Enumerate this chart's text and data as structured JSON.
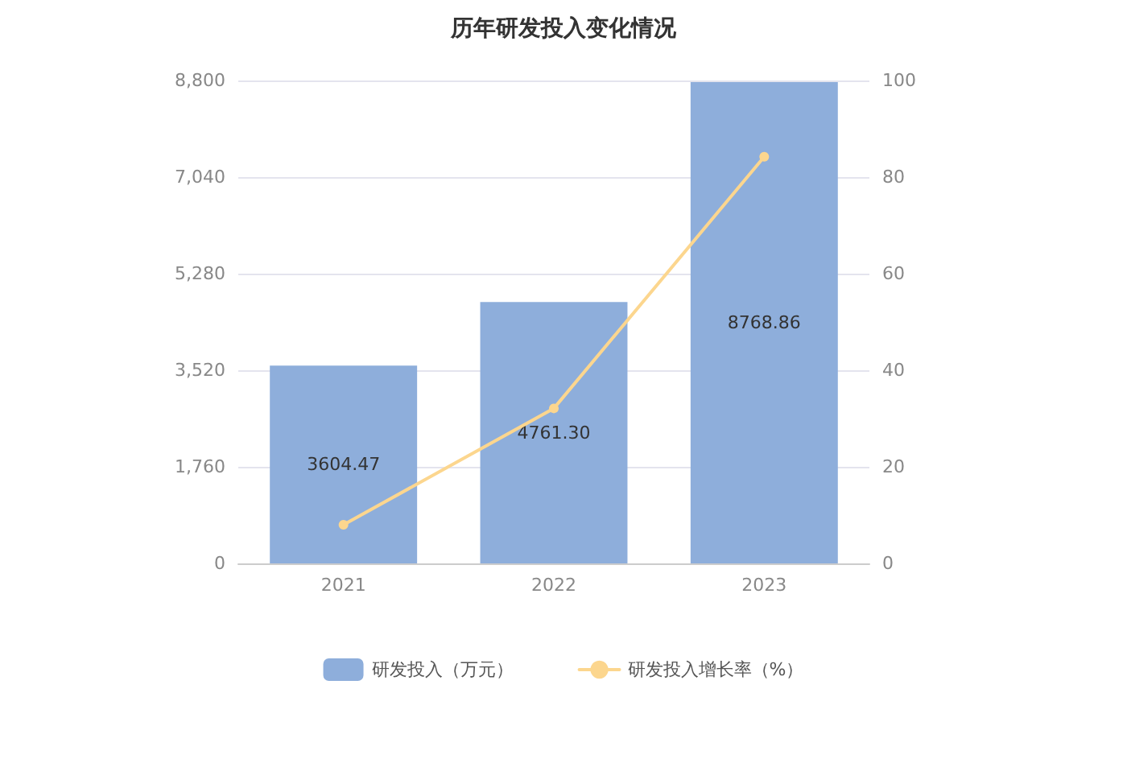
{
  "chart_data": {
    "type": "bar",
    "title": "历年研发投入变化情况",
    "categories": [
      "2021",
      "2022",
      "2023"
    ],
    "series": [
      {
        "name": "研发投入（万元）",
        "color": "#8eaedb",
        "values": [
          3604.47,
          4761.3,
          8768.86
        ],
        "value_labels": [
          "3604.47",
          "4761.30",
          "8768.86"
        ]
      },
      {
        "name": "研发投入增长率（%）",
        "type": "line",
        "axis": "y2",
        "color": "#fcd68e",
        "values": [
          8,
          32.1,
          84.2
        ]
      }
    ],
    "ylim": [
      0,
      8800
    ],
    "yticks": [
      0,
      {
        "value": 1760,
        "label": "1,760"
      },
      {
        "value": 3520,
        "label": "3,520"
      },
      {
        "value": 5280,
        "label": "5,280"
      },
      {
        "value": 7040,
        "label": "7,040"
      },
      {
        "value": 8800,
        "label": "8,800"
      }
    ],
    "y2lim": [
      0,
      100
    ],
    "y2ticks": [
      0,
      20,
      40,
      60,
      80,
      100
    ],
    "grid": "y",
    "legend": "bottom",
    "marker": "circle",
    "line_style": "solid"
  }
}
